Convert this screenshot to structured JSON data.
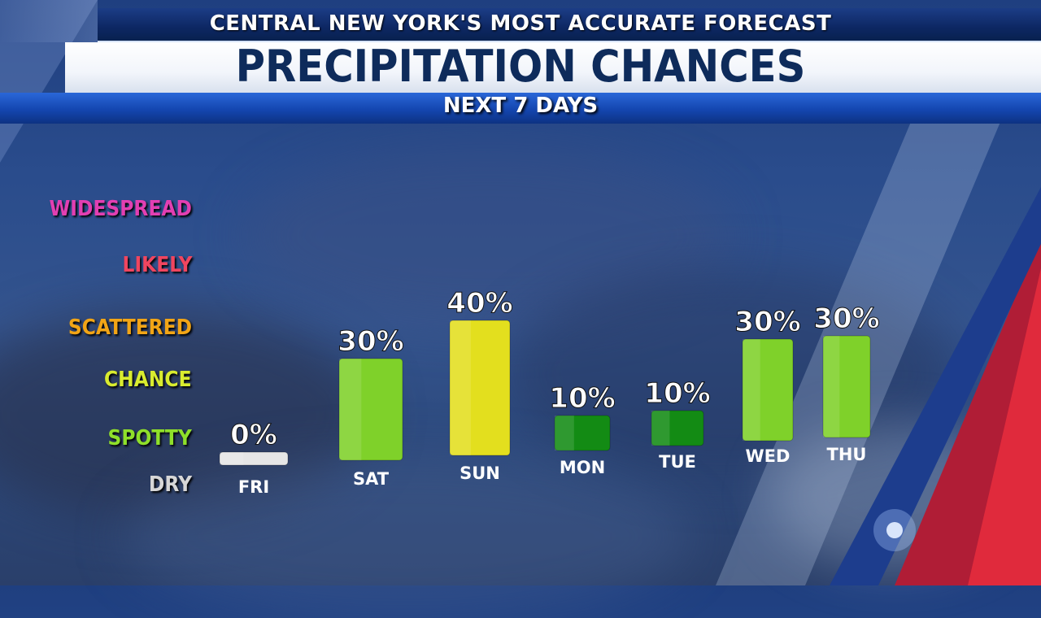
{
  "header": {
    "tagline": "CENTRAL NEW YORK'S MOST ACCURATE FORECAST",
    "title": "PRECIPITATION CHANCES",
    "subtitle": "NEXT 7 DAYS"
  },
  "levels": [
    {
      "label": "WIDESPREAD",
      "color": "#e23fb2"
    },
    {
      "label": "LIKELY",
      "color": "#f0455f"
    },
    {
      "label": "SCATTERED",
      "color": "#f2a516"
    },
    {
      "label": "CHANCE",
      "color": "#d9ec2f"
    },
    {
      "label": "SPOTTY",
      "color": "#8fe02a"
    },
    {
      "label": "DRY",
      "color": "#d7d7d7"
    }
  ],
  "chart_data": {
    "type": "bar",
    "categories": [
      "FRI",
      "SAT",
      "SUN",
      "MON",
      "TUE",
      "WED",
      "THU"
    ],
    "values": [
      0,
      30,
      40,
      10,
      10,
      30,
      30
    ],
    "value_labels": [
      "0%",
      "30%",
      "40%",
      "10%",
      "10%",
      "30%",
      "30%"
    ],
    "bar_colors": [
      "#e6e6e6",
      "#7fd12a",
      "#e3df1e",
      "#138b14",
      "#138b14",
      "#7fd12a",
      "#7fd12a"
    ],
    "ylim": [
      0,
      40
    ]
  }
}
